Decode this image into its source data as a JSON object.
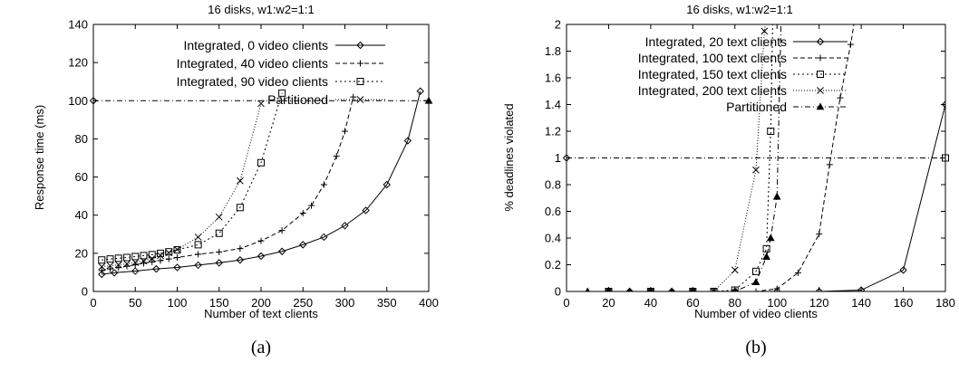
{
  "chart_data": [
    {
      "type": "line",
      "title": "16 disks, w1:w2=1:1",
      "xlabel": "Number of text clients",
      "ylabel": "Response time (ms)",
      "caption": "(a)",
      "xlim": [
        0,
        400
      ],
      "ylim": [
        0,
        140
      ],
      "xticks": [
        0,
        50,
        100,
        150,
        200,
        250,
        300,
        350,
        400
      ],
      "yticks": [
        0,
        20,
        40,
        60,
        80,
        100,
        120,
        140
      ],
      "grid": false,
      "legend_position": "top-left",
      "series": [
        {
          "name": "Integrated,  0 video clients",
          "marker": "diamond",
          "dash": "solid",
          "x": [
            10,
            25,
            50,
            75,
            100,
            125,
            150,
            175,
            200,
            225,
            250,
            275,
            300,
            325,
            350,
            375,
            390
          ],
          "y": [
            9,
            9.8,
            10.7,
            11.8,
            12.6,
            13.8,
            15,
            16.5,
            18.5,
            21,
            24.5,
            28.5,
            34.5,
            42.5,
            56,
            79,
            105
          ]
        },
        {
          "name": "Integrated, 40 video clients",
          "marker": "plus",
          "dash": "dashed",
          "x": [
            10,
            20,
            30,
            40,
            50,
            60,
            70,
            80,
            90,
            100,
            125,
            150,
            175,
            200,
            225,
            250,
            260,
            275,
            290,
            300,
            310
          ],
          "y": [
            11,
            11.8,
            12.5,
            13.2,
            14,
            14.8,
            15.5,
            16.2,
            17,
            17.8,
            19.5,
            20.7,
            22.5,
            26.5,
            32,
            41,
            45,
            56,
            71,
            84,
            102
          ]
        },
        {
          "name": "Integrated, 90 video clients",
          "marker": "square",
          "dash": "dotted",
          "x": [
            10,
            20,
            30,
            40,
            50,
            60,
            70,
            80,
            90,
            100,
            125,
            150,
            175,
            200,
            225
          ],
          "y": [
            16.5,
            17,
            17.4,
            17.8,
            18.3,
            18.8,
            19.3,
            20,
            20.8,
            21.8,
            24.5,
            30.5,
            44,
            67.5,
            104
          ]
        },
        {
          "name": "Partitioned",
          "marker": "x",
          "dash": "fine-dotted",
          "x": [
            10,
            20,
            30,
            40,
            50,
            60,
            70,
            80,
            90,
            100,
            125,
            150,
            175,
            200
          ],
          "y": [
            13,
            13.5,
            14,
            14.5,
            15.2,
            16,
            17.2,
            18.8,
            20.3,
            22,
            28.5,
            39,
            58,
            98.5
          ]
        }
      ],
      "reference_line": {
        "y": 100,
        "dash": "dash-dot"
      }
    },
    {
      "type": "line",
      "title": "16 disks, w1:w2=1:1",
      "xlabel": "Number of video clients",
      "ylabel": "% deadlines violated",
      "caption": "(b)",
      "xlim": [
        0,
        180
      ],
      "ylim": [
        0,
        2
      ],
      "xticks": [
        0,
        20,
        40,
        60,
        80,
        100,
        120,
        140,
        160,
        180
      ],
      "yticks": [
        "0",
        "0.2",
        "0.4",
        "0.6",
        "0.8",
        "1",
        "1.2",
        "1.4",
        "1.6",
        "1.8",
        "2"
      ],
      "grid": false,
      "legend_position": "top-left",
      "series": [
        {
          "name": "Integrated,  20 text clients",
          "marker": "diamond",
          "dash": "solid",
          "x": [
            20,
            30,
            40,
            50,
            60,
            80,
            100,
            120,
            140,
            160,
            180
          ],
          "y": [
            0,
            0,
            0,
            0,
            0,
            0,
            0,
            0,
            0.01,
            0.16,
            1.4
          ]
        },
        {
          "name": "Integrated, 100 text clients",
          "marker": "plus",
          "dash": "dashed",
          "x": [
            10,
            20,
            30,
            40,
            50,
            60,
            70,
            80,
            90,
            100,
            110,
            120,
            125,
            130,
            135,
            137
          ],
          "y": [
            0,
            0,
            0,
            0,
            0,
            0,
            0,
            0,
            0,
            0.02,
            0.14,
            0.43,
            0.95,
            1.45,
            1.85,
            2.05
          ]
        },
        {
          "name": "Integrated, 150 text clients",
          "marker": "square",
          "dash": "dotted",
          "x": [
            20,
            40,
            60,
            70,
            80,
            90,
            95,
            97,
            98
          ],
          "y": [
            0,
            0,
            0,
            0,
            0.01,
            0.15,
            0.32,
            1.2,
            2.05
          ]
        },
        {
          "name": "Integrated, 200 text clients",
          "marker": "x",
          "dash": "fine-dotted",
          "x": [
            20,
            40,
            60,
            70,
            80,
            90,
            94,
            95
          ],
          "y": [
            0,
            0,
            0,
            0,
            0.16,
            0.91,
            1.95,
            2.05
          ]
        },
        {
          "name": "Partitioned",
          "marker": "triangle",
          "dash": "dash-dot",
          "x": [
            10,
            20,
            30,
            40,
            50,
            60,
            70,
            80,
            90,
            95,
            97,
            100,
            102
          ],
          "y": [
            0,
            0,
            0,
            0,
            0,
            0,
            0,
            0,
            0.07,
            0.26,
            0.4,
            0.71,
            2.05
          ]
        }
      ],
      "reference_line": {
        "y": 1,
        "dash": "dash-dot"
      }
    }
  ]
}
